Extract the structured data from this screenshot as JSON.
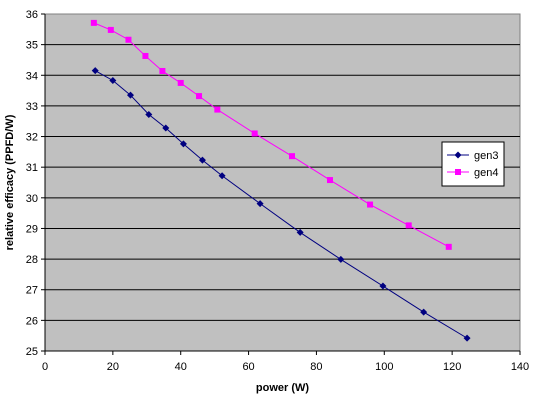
{
  "chart_data": {
    "type": "line",
    "xlabel": "power (W)",
    "ylabel": "relative efficacy (PPFD/W)",
    "xlim": [
      0,
      140
    ],
    "ylim": [
      25,
      36
    ],
    "xticks": [
      0,
      20,
      40,
      60,
      80,
      100,
      120,
      140
    ],
    "yticks": [
      25,
      26,
      27,
      28,
      29,
      30,
      31,
      32,
      33,
      34,
      35,
      36
    ],
    "grid": "horizontal",
    "plot_background": "#c0c0c0",
    "legend_position": "right",
    "series": [
      {
        "name": "gen3",
        "color": "#000080",
        "marker": "diamond",
        "x": [
          14.8,
          20.0,
          25.2,
          30.6,
          35.6,
          40.8,
          46.4,
          52.2,
          63.4,
          75.2,
          87.2,
          99.6,
          111.6,
          124.4
        ],
        "y": [
          34.15,
          33.83,
          33.35,
          32.72,
          32.28,
          31.76,
          31.23,
          30.72,
          29.81,
          28.87,
          27.99,
          27.12,
          26.27,
          25.42
        ]
      },
      {
        "name": "gen4",
        "color": "#ff00ff",
        "marker": "square",
        "x": [
          14.4,
          19.4,
          24.6,
          29.6,
          34.6,
          40.0,
          45.4,
          50.8,
          61.8,
          72.8,
          84.0,
          95.8,
          107.2,
          119.0
        ],
        "y": [
          35.71,
          35.48,
          35.16,
          34.63,
          34.14,
          33.75,
          33.32,
          32.88,
          32.1,
          31.36,
          30.58,
          29.78,
          29.1,
          28.4
        ]
      }
    ]
  }
}
